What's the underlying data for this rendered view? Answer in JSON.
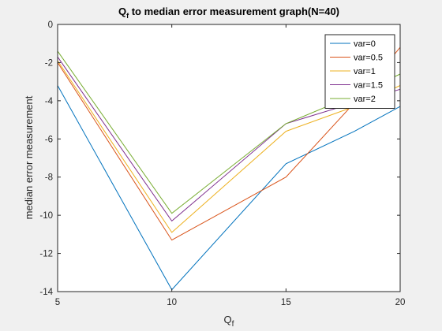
{
  "chart_data": {
    "type": "line",
    "title": "Q",
    "title_subscript": "f",
    "title_rest": " to median error measurement graph(N=40)",
    "xlabel": "Q",
    "xlabel_subscript": "f",
    "ylabel": "median error measurement",
    "xlim": [
      5,
      20
    ],
    "ylim": [
      -14,
      0
    ],
    "xticks": [
      5,
      10,
      15,
      20
    ],
    "yticks": [
      0,
      -2,
      -4,
      -6,
      -8,
      -10,
      -12,
      -14
    ],
    "grid": false,
    "legend_position": "top-right",
    "x": [
      5,
      10,
      15,
      18,
      20
    ],
    "series": [
      {
        "name": "var=0",
        "color": "#0072bd",
        "values": [
          -3.2,
          -13.9,
          -7.3,
          -5.6,
          -4.3
        ]
      },
      {
        "name": "var=0.5",
        "color": "#d95319",
        "values": [
          -2.0,
          -11.3,
          -8.0,
          -4.1,
          -1.2
        ]
      },
      {
        "name": "var=1",
        "color": "#edb120",
        "values": [
          -1.9,
          -10.9,
          -5.6,
          -4.3,
          -3.2
        ]
      },
      {
        "name": "var=1.5",
        "color": "#7e2f8e",
        "values": [
          -1.7,
          -10.3,
          -5.2,
          -4.1,
          -3.4
        ]
      },
      {
        "name": "var=2",
        "color": "#77ac30",
        "values": [
          -1.4,
          -9.9,
          -5.2,
          -3.7,
          -2.6
        ]
      }
    ]
  }
}
